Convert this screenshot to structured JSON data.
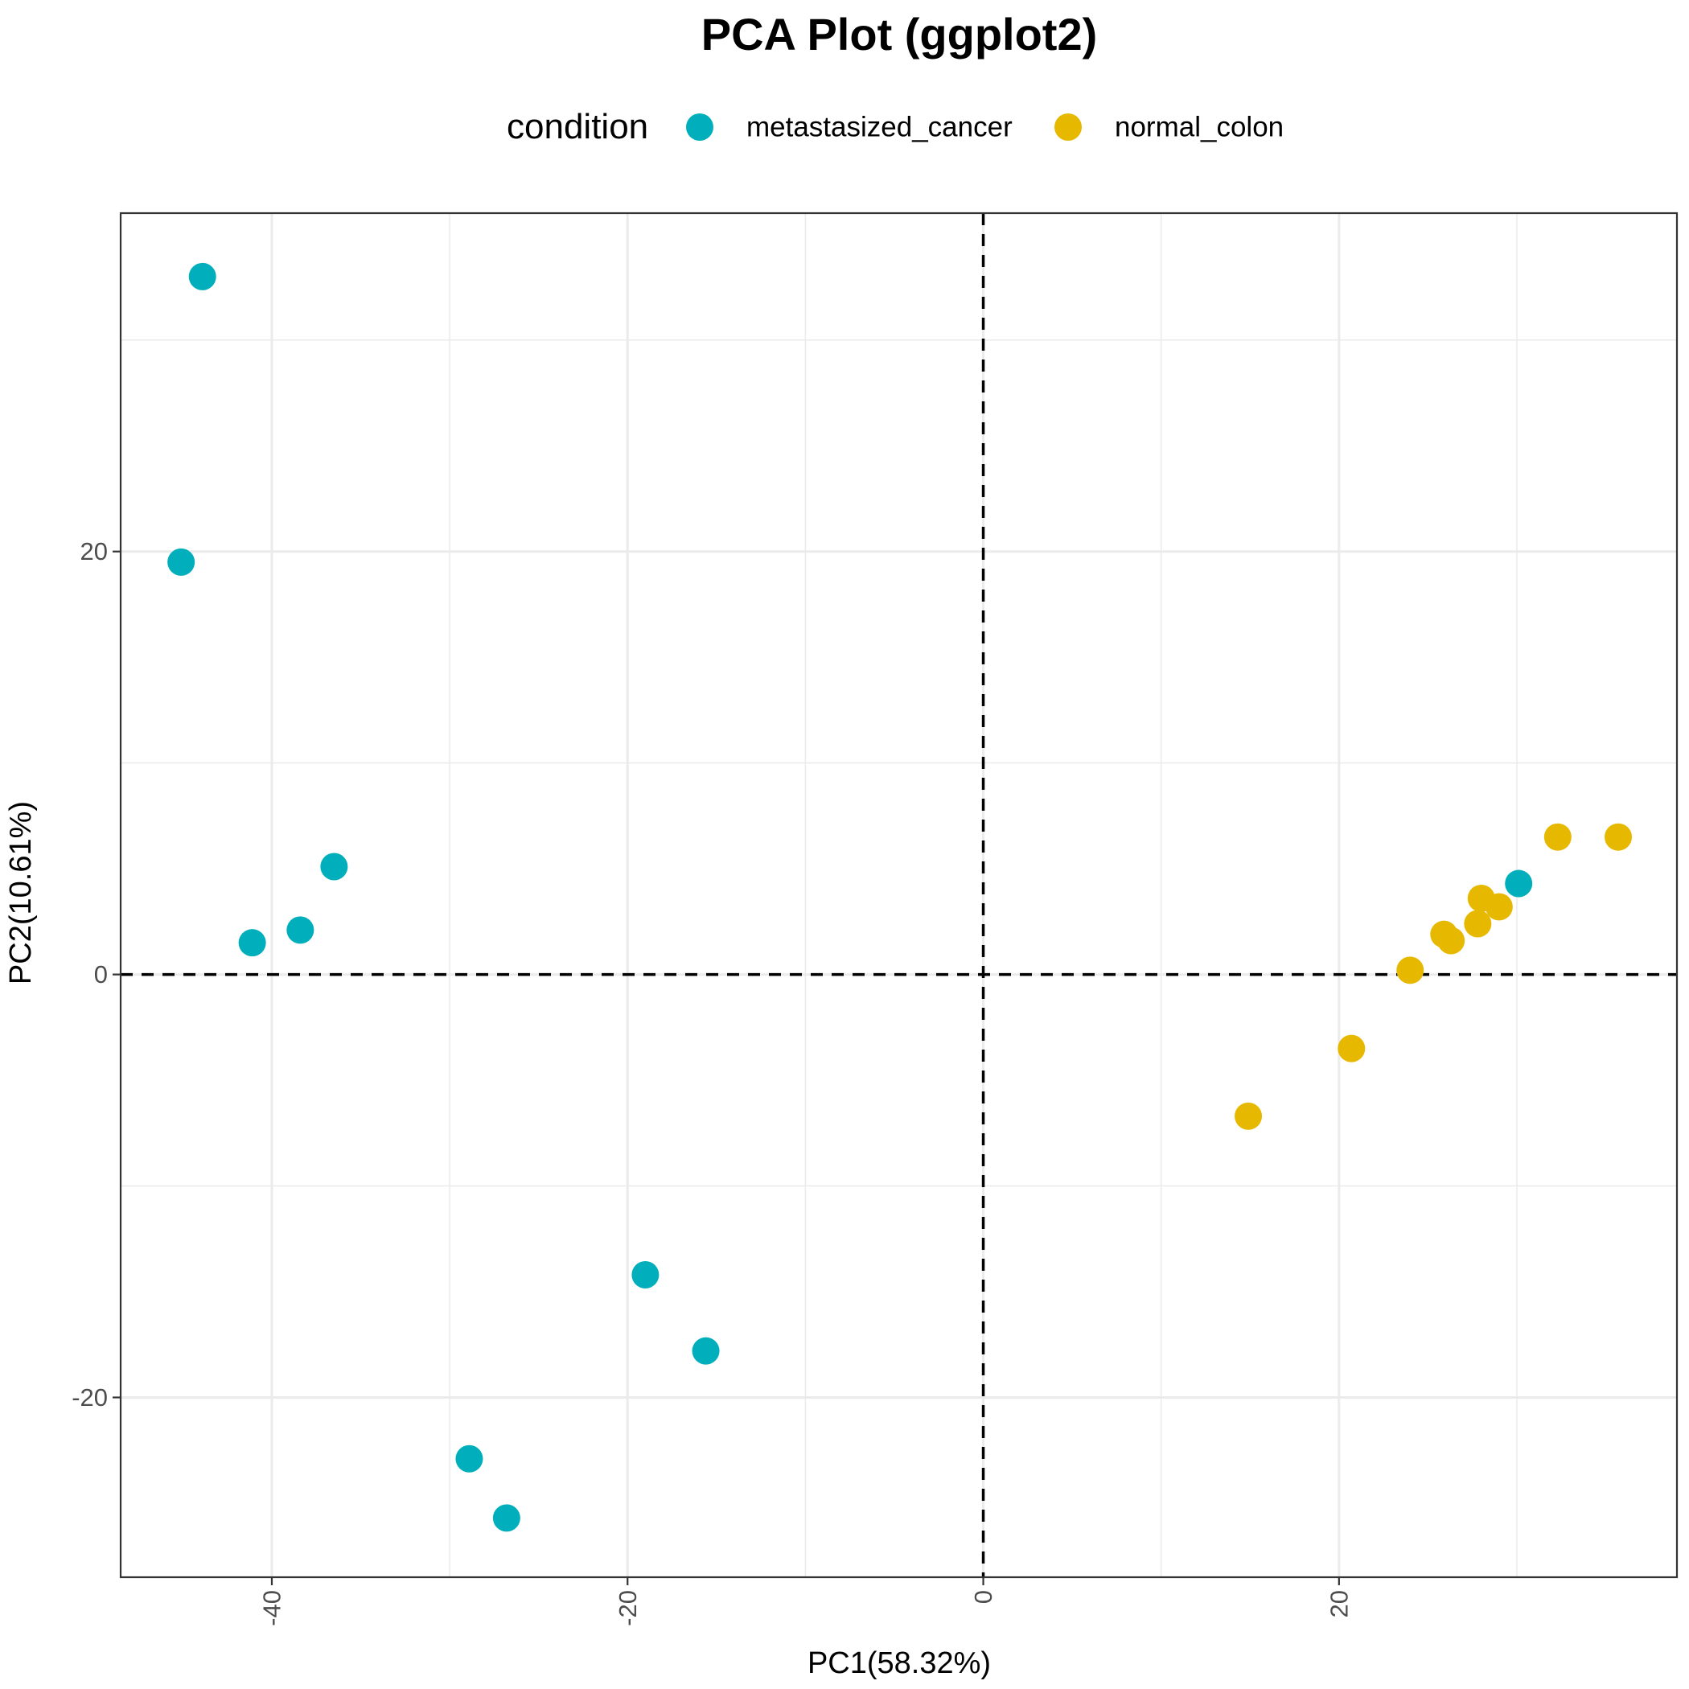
{
  "chart_data": {
    "type": "scatter",
    "title": "PCA Plot (ggplot2)",
    "xlabel": "PC1(58.32%)",
    "ylabel": "PC2(10.61%)",
    "xlim": [
      -48.5,
      39
    ],
    "ylim": [
      -28.5,
      36
    ],
    "x_ticks": [
      -40,
      -20,
      0,
      20
    ],
    "y_ticks": [
      -20,
      0,
      20
    ],
    "x_tick_labels": [
      "-40",
      "-20",
      "0",
      "20"
    ],
    "y_tick_labels": [
      "-20",
      "0",
      "20"
    ],
    "grid": true,
    "reference_lines": {
      "x": 0,
      "y": 0,
      "style": "dashed"
    },
    "legend": {
      "title": "condition",
      "position": "top"
    },
    "series": [
      {
        "name": "metastasized_cancer",
        "color": "#00AFBB",
        "points": [
          {
            "x": -43.9,
            "y": 33.0
          },
          {
            "x": -45.1,
            "y": 19.5
          },
          {
            "x": -36.5,
            "y": 5.1
          },
          {
            "x": -38.4,
            "y": 2.1
          },
          {
            "x": -41.1,
            "y": 1.5
          },
          {
            "x": -19.0,
            "y": -14.2
          },
          {
            "x": -15.6,
            "y": -17.8
          },
          {
            "x": -28.9,
            "y": -22.9
          },
          {
            "x": -26.8,
            "y": -25.7
          },
          {
            "x": 30.1,
            "y": 4.3
          }
        ]
      },
      {
        "name": "normal_colon",
        "color": "#E7B800",
        "points": [
          {
            "x": 32.3,
            "y": 6.5
          },
          {
            "x": 35.7,
            "y": 6.5
          },
          {
            "x": 28.0,
            "y": 3.6
          },
          {
            "x": 29.0,
            "y": 3.2
          },
          {
            "x": 27.8,
            "y": 2.4
          },
          {
            "x": 25.9,
            "y": 1.9
          },
          {
            "x": 26.3,
            "y": 1.6
          },
          {
            "x": 24.0,
            "y": 0.2
          },
          {
            "x": 20.7,
            "y": -3.5
          },
          {
            "x": 14.9,
            "y": -6.7
          }
        ]
      }
    ]
  }
}
